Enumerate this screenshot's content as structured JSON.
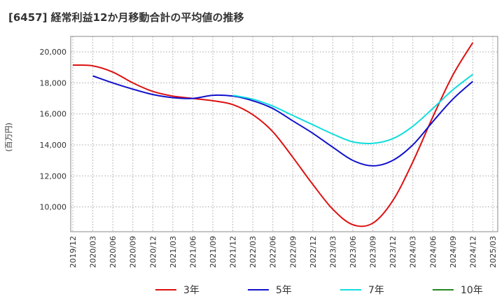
{
  "title": "[6457]  経常利益12か月移動合計の平均値の推移",
  "chart_data": {
    "type": "line",
    "title": "[6457]  経常利益12か月移動合計の平均値の推移",
    "xlabel": "",
    "ylabel": "(百万円)",
    "ylim": [
      8400,
      21000
    ],
    "grid": true,
    "legend_position": "bottom",
    "x_ticks": [
      "2019/12",
      "2020/03",
      "2020/06",
      "2020/09",
      "2020/12",
      "2021/03",
      "2021/06",
      "2021/09",
      "2021/12",
      "2022/03",
      "2022/06",
      "2022/09",
      "2022/12",
      "2023/03",
      "2023/06",
      "2023/09",
      "2023/12",
      "2024/03",
      "2024/06",
      "2024/09",
      "2024/12",
      "2025/03"
    ],
    "y_ticks": [
      10000,
      12000,
      14000,
      16000,
      18000,
      20000
    ],
    "y_tick_labels": [
      "10,000",
      "12,000",
      "14,000",
      "16,000",
      "18,000",
      "20,000"
    ],
    "series": [
      {
        "name": "3年",
        "color": "#dd1111",
        "points": [
          [
            "2019/12",
            19150
          ],
          [
            "2020/03",
            19100
          ],
          [
            "2020/06",
            18700
          ],
          [
            "2020/09",
            18000
          ],
          [
            "2020/12",
            17450
          ],
          [
            "2021/03",
            17150
          ],
          [
            "2021/06",
            17000
          ],
          [
            "2021/09",
            16850
          ],
          [
            "2021/12",
            16600
          ],
          [
            "2022/03",
            15950
          ],
          [
            "2022/06",
            14850
          ],
          [
            "2022/09",
            13200
          ],
          [
            "2022/12",
            11450
          ],
          [
            "2023/03",
            9850
          ],
          [
            "2023/06",
            8850
          ],
          [
            "2023/09",
            8950
          ],
          [
            "2023/12",
            10400
          ],
          [
            "2024/03",
            12900
          ],
          [
            "2024/06",
            15800
          ],
          [
            "2024/09",
            18500
          ],
          [
            "2024/12",
            20600
          ]
        ]
      },
      {
        "name": "5年",
        "color": "#1111cc",
        "points": [
          [
            "2020/03",
            18450
          ],
          [
            "2020/06",
            18000
          ],
          [
            "2020/09",
            17600
          ],
          [
            "2020/12",
            17250
          ],
          [
            "2021/03",
            17050
          ],
          [
            "2021/06",
            17000
          ],
          [
            "2021/09",
            17200
          ],
          [
            "2021/12",
            17150
          ],
          [
            "2022/03",
            16850
          ],
          [
            "2022/06",
            16350
          ],
          [
            "2022/09",
            15550
          ],
          [
            "2022/12",
            14750
          ],
          [
            "2023/03",
            13850
          ],
          [
            "2023/06",
            13000
          ],
          [
            "2023/09",
            12650
          ],
          [
            "2023/12",
            13000
          ],
          [
            "2024/03",
            14000
          ],
          [
            "2024/06",
            15500
          ],
          [
            "2024/09",
            16950
          ],
          [
            "2024/12",
            18100
          ]
        ]
      },
      {
        "name": "7年",
        "color": "#11dddd",
        "points": [
          [
            "2021/12",
            17200
          ],
          [
            "2022/03",
            16950
          ],
          [
            "2022/06",
            16500
          ],
          [
            "2022/09",
            15900
          ],
          [
            "2022/12",
            15300
          ],
          [
            "2023/03",
            14700
          ],
          [
            "2023/06",
            14200
          ],
          [
            "2023/09",
            14100
          ],
          [
            "2023/12",
            14400
          ],
          [
            "2024/03",
            15200
          ],
          [
            "2024/06",
            16350
          ],
          [
            "2024/09",
            17550
          ],
          [
            "2024/12",
            18550
          ]
        ]
      },
      {
        "name": "10年",
        "color": "#228822",
        "points": []
      }
    ]
  }
}
